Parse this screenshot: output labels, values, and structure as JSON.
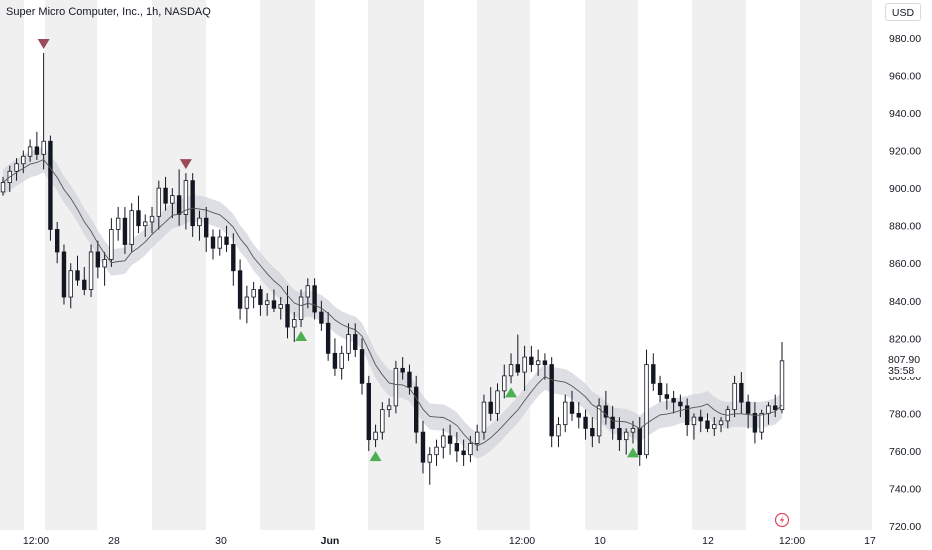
{
  "header": {
    "title": "Super Micro Computer, Inc., 1h, NASDAQ"
  },
  "currency_button": {
    "label": "USD"
  },
  "colors": {
    "up": "#131722",
    "down": "#131722",
    "band": "#d1d4dc",
    "ma": "#555555",
    "session_shade": "#f0f0f0",
    "sell_marker": "#9b4a5a",
    "buy_marker": "#4caf50",
    "current_label_bg": "#ffffff"
  },
  "chart_data": {
    "type": "candlestick",
    "symbol": "Super Micro Computer, Inc.",
    "interval": "1h",
    "exchange": "NASDAQ",
    "y_axis": {
      "ticks": [
        720,
        740,
        760,
        780,
        800,
        820,
        840,
        860,
        880,
        900,
        920,
        940,
        960,
        980
      ],
      "tick_labels": [
        "720.00",
        "740.00",
        "760.00",
        "780.00",
        "800.00",
        "820.00",
        "840.00",
        "860.00",
        "880.00",
        "900.00",
        "920.00",
        "940.00",
        "960.00",
        "980.00"
      ],
      "range": [
        716,
        991
      ]
    },
    "x_axis": {
      "ticks": [
        {
          "label": "12:00",
          "pos": 36,
          "bold": false
        },
        {
          "label": "28",
          "pos": 114,
          "bold": false
        },
        {
          "label": "30",
          "pos": 221,
          "bold": false
        },
        {
          "label": "Jun",
          "pos": 330,
          "bold": true
        },
        {
          "label": "5",
          "pos": 438,
          "bold": false
        },
        {
          "label": "12:00",
          "pos": 522,
          "bold": false
        },
        {
          "label": "10",
          "pos": 600,
          "bold": false
        },
        {
          "label": "12",
          "pos": 708,
          "bold": false
        },
        {
          "label": "12:00",
          "pos": 792,
          "bold": false
        },
        {
          "label": "17",
          "pos": 870,
          "bold": false
        }
      ]
    },
    "current_price": {
      "label": "807.90",
      "value": 807.9,
      "countdown": "35:58"
    },
    "ohlc": [
      [
        898,
        906,
        896,
        903
      ],
      [
        903,
        912,
        898,
        909
      ],
      [
        909,
        916,
        904,
        913
      ],
      [
        913,
        920,
        908,
        917
      ],
      [
        917,
        926,
        914,
        922
      ],
      [
        922,
        930,
        915,
        918
      ],
      [
        918,
        972,
        910,
        925
      ],
      [
        925,
        928,
        872,
        878
      ],
      [
        878,
        882,
        860,
        866
      ],
      [
        866,
        870,
        838,
        842
      ],
      [
        842,
        860,
        836,
        856
      ],
      [
        856,
        864,
        848,
        851
      ],
      [
        851,
        858,
        843,
        846
      ],
      [
        846,
        870,
        842,
        866
      ],
      [
        866,
        872,
        852,
        858
      ],
      [
        858,
        866,
        848,
        862
      ],
      [
        862,
        884,
        858,
        878
      ],
      [
        878,
        890,
        872,
        884
      ],
      [
        884,
        890,
        865,
        870
      ],
      [
        870,
        892,
        866,
        888
      ],
      [
        888,
        896,
        876,
        880
      ],
      [
        880,
        886,
        874,
        882
      ],
      [
        882,
        890,
        876,
        885
      ],
      [
        885,
        904,
        878,
        900
      ],
      [
        900,
        906,
        888,
        892
      ],
      [
        892,
        900,
        884,
        896
      ],
      [
        896,
        910,
        880,
        886
      ],
      [
        886,
        908,
        878,
        904
      ],
      [
        904,
        908,
        874,
        880
      ],
      [
        880,
        888,
        872,
        884
      ],
      [
        884,
        890,
        866,
        874
      ],
      [
        874,
        878,
        862,
        868
      ],
      [
        868,
        878,
        864,
        874
      ],
      [
        874,
        880,
        866,
        870
      ],
      [
        870,
        876,
        848,
        856
      ],
      [
        856,
        862,
        830,
        836
      ],
      [
        836,
        848,
        828,
        842
      ],
      [
        842,
        850,
        836,
        846
      ],
      [
        846,
        848,
        832,
        838
      ],
      [
        838,
        844,
        832,
        840
      ],
      [
        840,
        846,
        834,
        836
      ],
      [
        836,
        842,
        830,
        838
      ],
      [
        838,
        848,
        820,
        826
      ],
      [
        826,
        834,
        818,
        830
      ],
      [
        830,
        846,
        826,
        842
      ],
      [
        842,
        852,
        836,
        848
      ],
      [
        848,
        852,
        830,
        834
      ],
      [
        834,
        840,
        824,
        828
      ],
      [
        828,
        834,
        808,
        812
      ],
      [
        812,
        820,
        800,
        804
      ],
      [
        804,
        816,
        798,
        812
      ],
      [
        812,
        828,
        808,
        822
      ],
      [
        822,
        828,
        810,
        814
      ],
      [
        814,
        820,
        790,
        796
      ],
      [
        796,
        800,
        760,
        766
      ],
      [
        766,
        774,
        762,
        770
      ],
      [
        770,
        786,
        766,
        782
      ],
      [
        782,
        788,
        778,
        784
      ],
      [
        784,
        808,
        780,
        804
      ],
      [
        804,
        810,
        798,
        802
      ],
      [
        802,
        806,
        790,
        794
      ],
      [
        794,
        800,
        764,
        770
      ],
      [
        770,
        776,
        748,
        754
      ],
      [
        754,
        762,
        742,
        758
      ],
      [
        758,
        766,
        752,
        762
      ],
      [
        762,
        772,
        756,
        768
      ],
      [
        768,
        774,
        758,
        764
      ],
      [
        764,
        770,
        754,
        760
      ],
      [
        760,
        766,
        752,
        758
      ],
      [
        758,
        768,
        754,
        764
      ],
      [
        764,
        774,
        760,
        770
      ],
      [
        770,
        790,
        766,
        786
      ],
      [
        786,
        794,
        776,
        780
      ],
      [
        780,
        796,
        776,
        792
      ],
      [
        792,
        806,
        788,
        800
      ],
      [
        800,
        812,
        796,
        806
      ],
      [
        806,
        822,
        800,
        802
      ],
      [
        802,
        816,
        792,
        810
      ],
      [
        810,
        816,
        802,
        806
      ],
      [
        806,
        814,
        800,
        808
      ],
      [
        808,
        812,
        798,
        806
      ],
      [
        806,
        810,
        762,
        768
      ],
      [
        768,
        778,
        762,
        774
      ],
      [
        774,
        790,
        770,
        786
      ],
      [
        786,
        792,
        776,
        780
      ],
      [
        780,
        786,
        772,
        778
      ],
      [
        778,
        782,
        766,
        772
      ],
      [
        772,
        778,
        762,
        768
      ],
      [
        768,
        788,
        764,
        784
      ],
      [
        784,
        792,
        774,
        778
      ],
      [
        778,
        784,
        766,
        772
      ],
      [
        772,
        778,
        760,
        766
      ],
      [
        766,
        772,
        758,
        770
      ],
      [
        770,
        776,
        764,
        772
      ],
      [
        772,
        778,
        752,
        758
      ],
      [
        758,
        814,
        756,
        806
      ],
      [
        806,
        812,
        792,
        796
      ],
      [
        796,
        800,
        786,
        790
      ],
      [
        790,
        796,
        782,
        788
      ],
      [
        788,
        792,
        780,
        786
      ],
      [
        786,
        790,
        778,
        784
      ],
      [
        784,
        788,
        768,
        774
      ],
      [
        774,
        780,
        766,
        778
      ],
      [
        778,
        782,
        770,
        776
      ],
      [
        776,
        780,
        770,
        772
      ],
      [
        772,
        778,
        768,
        774
      ],
      [
        774,
        778,
        770,
        776
      ],
      [
        776,
        784,
        772,
        782
      ],
      [
        782,
        800,
        778,
        796
      ],
      [
        796,
        802,
        780,
        786
      ],
      [
        786,
        790,
        772,
        780
      ],
      [
        780,
        786,
        764,
        770
      ],
      [
        770,
        782,
        766,
        780
      ],
      [
        780,
        786,
        774,
        784
      ],
      [
        784,
        790,
        778,
        782
      ],
      [
        782,
        818,
        780,
        808
      ]
    ],
    "signals": [
      {
        "type": "sell",
        "index": 6
      },
      {
        "type": "sell",
        "index": 27
      },
      {
        "type": "buy",
        "index": 44
      },
      {
        "type": "buy",
        "index": 55
      },
      {
        "type": "buy",
        "index": 75
      },
      {
        "type": "buy",
        "index": 93
      }
    ]
  }
}
